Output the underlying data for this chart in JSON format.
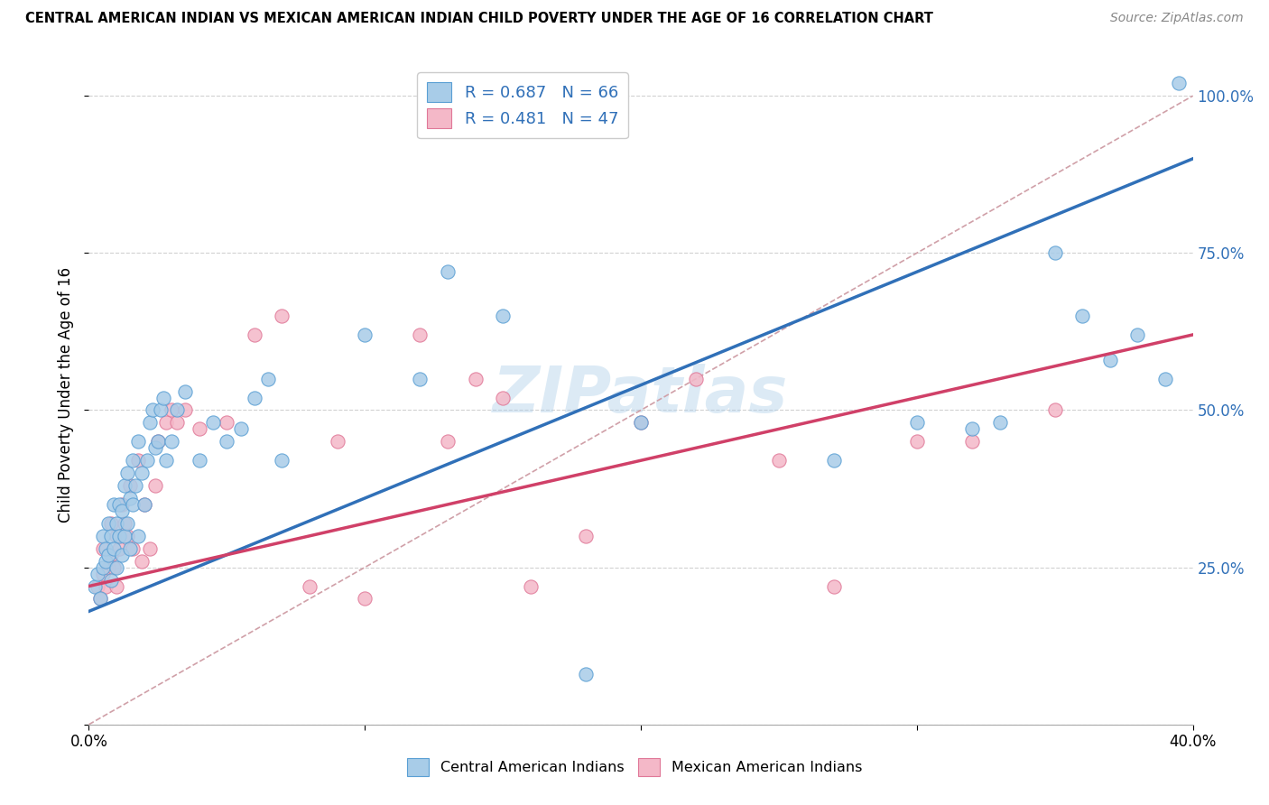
{
  "title": "CENTRAL AMERICAN INDIAN VS MEXICAN AMERICAN INDIAN CHILD POVERTY UNDER THE AGE OF 16 CORRELATION CHART",
  "source": "Source: ZipAtlas.com",
  "ylabel": "Child Poverty Under the Age of 16",
  "xlim": [
    0.0,
    0.4
  ],
  "ylim": [
    0.0,
    1.05
  ],
  "x_ticks": [
    0.0,
    0.1,
    0.2,
    0.3,
    0.4
  ],
  "y_ticks": [
    0.0,
    0.25,
    0.5,
    0.75,
    1.0
  ],
  "blue_R": 0.687,
  "blue_N": 66,
  "pink_R": 0.481,
  "pink_N": 47,
  "blue_color": "#a8cce8",
  "pink_color": "#f4b8c8",
  "blue_edge_color": "#5a9fd4",
  "pink_edge_color": "#e07898",
  "blue_line_color": "#3070b8",
  "pink_line_color": "#d04068",
  "diagonal_color": "#d0a0a8",
  "watermark": "ZIPatlas",
  "blue_line_x0": 0.0,
  "blue_line_y0": 0.18,
  "blue_line_x1": 0.4,
  "blue_line_y1": 0.9,
  "pink_line_x0": 0.0,
  "pink_line_y0": 0.22,
  "pink_line_x1": 0.4,
  "pink_line_y1": 0.62,
  "blue_scatter_x": [
    0.002,
    0.003,
    0.004,
    0.005,
    0.005,
    0.006,
    0.006,
    0.007,
    0.007,
    0.008,
    0.008,
    0.009,
    0.009,
    0.01,
    0.01,
    0.011,
    0.011,
    0.012,
    0.012,
    0.013,
    0.013,
    0.014,
    0.014,
    0.015,
    0.015,
    0.016,
    0.016,
    0.017,
    0.018,
    0.018,
    0.019,
    0.02,
    0.021,
    0.022,
    0.023,
    0.024,
    0.025,
    0.026,
    0.027,
    0.028,
    0.03,
    0.032,
    0.035,
    0.04,
    0.045,
    0.05,
    0.055,
    0.06,
    0.065,
    0.07,
    0.1,
    0.12,
    0.13,
    0.15,
    0.18,
    0.2,
    0.27,
    0.3,
    0.32,
    0.33,
    0.35,
    0.36,
    0.37,
    0.38,
    0.39,
    0.395
  ],
  "blue_scatter_y": [
    0.22,
    0.24,
    0.2,
    0.25,
    0.3,
    0.26,
    0.28,
    0.27,
    0.32,
    0.23,
    0.3,
    0.28,
    0.35,
    0.25,
    0.32,
    0.3,
    0.35,
    0.27,
    0.34,
    0.3,
    0.38,
    0.32,
    0.4,
    0.28,
    0.36,
    0.35,
    0.42,
    0.38,
    0.3,
    0.45,
    0.4,
    0.35,
    0.42,
    0.48,
    0.5,
    0.44,
    0.45,
    0.5,
    0.52,
    0.42,
    0.45,
    0.5,
    0.53,
    0.42,
    0.48,
    0.45,
    0.47,
    0.52,
    0.55,
    0.42,
    0.62,
    0.55,
    0.72,
    0.65,
    0.08,
    0.48,
    0.42,
    0.48,
    0.47,
    0.48,
    0.75,
    0.65,
    0.58,
    0.62,
    0.55,
    1.02
  ],
  "pink_scatter_x": [
    0.003,
    0.004,
    0.005,
    0.005,
    0.006,
    0.007,
    0.008,
    0.008,
    0.009,
    0.01,
    0.01,
    0.011,
    0.012,
    0.013,
    0.014,
    0.015,
    0.016,
    0.018,
    0.019,
    0.02,
    0.022,
    0.024,
    0.025,
    0.028,
    0.03,
    0.032,
    0.035,
    0.04,
    0.05,
    0.06,
    0.07,
    0.08,
    0.09,
    0.1,
    0.12,
    0.13,
    0.14,
    0.15,
    0.16,
    0.18,
    0.2,
    0.22,
    0.25,
    0.27,
    0.3,
    0.32,
    0.35
  ],
  "pink_scatter_y": [
    0.22,
    0.2,
    0.24,
    0.28,
    0.22,
    0.25,
    0.27,
    0.32,
    0.25,
    0.22,
    0.3,
    0.28,
    0.35,
    0.32,
    0.3,
    0.38,
    0.28,
    0.42,
    0.26,
    0.35,
    0.28,
    0.38,
    0.45,
    0.48,
    0.5,
    0.48,
    0.5,
    0.47,
    0.48,
    0.62,
    0.65,
    0.22,
    0.45,
    0.2,
    0.62,
    0.45,
    0.55,
    0.52,
    0.22,
    0.3,
    0.48,
    0.55,
    0.42,
    0.22,
    0.45,
    0.45,
    0.5
  ]
}
